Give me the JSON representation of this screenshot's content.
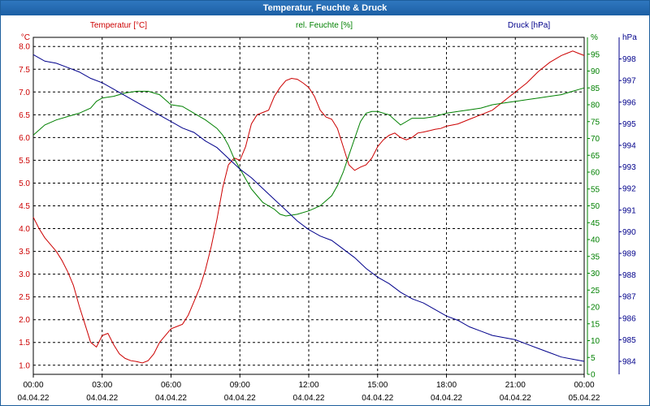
{
  "window": {
    "title": "Temperatur, Feuchte & Druck"
  },
  "colors": {
    "temperature": "#cc0000",
    "humidity": "#008000",
    "pressure": "#00008b",
    "grid": "#000000",
    "title_bar": "#2266aa",
    "tick_text": "#000000"
  },
  "chart_data": {
    "type": "line",
    "grid": true,
    "title": "Temperatur, Feuchte & Druck",
    "x_ticks": [
      {
        "time": "00:00",
        "date": "04.04.22"
      },
      {
        "time": "03:00",
        "date": "04.04.22"
      },
      {
        "time": "06:00",
        "date": "04.04.22"
      },
      {
        "time": "09:00",
        "date": "04.04.22"
      },
      {
        "time": "12:00",
        "date": "04.04.22"
      },
      {
        "time": "15:00",
        "date": "04.04.22"
      },
      {
        "time": "18:00",
        "date": "04.04.22"
      },
      {
        "time": "21:00",
        "date": "04.04.22"
      },
      {
        "time": "00:00",
        "date": "05.04.22"
      }
    ],
    "x_range_hours": [
      0,
      24
    ],
    "axes": [
      {
        "id": "temperature",
        "side": "left",
        "unit": "°C",
        "title": "Temperatur [°C]",
        "range": [
          0.8,
          8.2
        ],
        "ticks": [
          "1.0",
          "1.5",
          "2.0",
          "2.5",
          "3.0",
          "3.5",
          "4.0",
          "4.5",
          "5.0",
          "5.5",
          "6.0",
          "6.5",
          "7.0",
          "7.5",
          "8.0"
        ]
      },
      {
        "id": "humidity",
        "side": "right",
        "unit": "%",
        "title": "rel. Feuchte [%]",
        "range": [
          0,
          100
        ],
        "ticks": [
          "0",
          "5",
          "10",
          "15",
          "20",
          "25",
          "30",
          "35",
          "40",
          "45",
          "50",
          "55",
          "60",
          "65",
          "70",
          "75",
          "80",
          "85",
          "90",
          "95"
        ],
        "top_unit_label": "%"
      },
      {
        "id": "pressure",
        "side": "right",
        "unit": "hPa",
        "title": "Druck [hPa]",
        "range": [
          983.4,
          999.0
        ],
        "ticks": [
          "984",
          "985",
          "986",
          "987",
          "988",
          "989",
          "990",
          "991",
          "992",
          "993",
          "994",
          "995",
          "996",
          "997",
          "998"
        ],
        "top_unit_label": "hPa"
      }
    ],
    "series": [
      {
        "name": "Temperatur [°C]",
        "axis": "temperature",
        "x": [
          0,
          0.25,
          0.5,
          0.75,
          1,
          1.25,
          1.5,
          1.75,
          2,
          2.25,
          2.5,
          2.75,
          3,
          3.25,
          3.5,
          3.75,
          4,
          4.25,
          4.5,
          4.75,
          5,
          5.25,
          5.5,
          5.75,
          6,
          6.25,
          6.5,
          6.75,
          7,
          7.25,
          7.5,
          7.75,
          8,
          8.25,
          8.5,
          8.75,
          9,
          9.25,
          9.5,
          9.75,
          10,
          10.25,
          10.5,
          10.75,
          11,
          11.25,
          11.5,
          11.75,
          12,
          12.25,
          12.5,
          12.75,
          13,
          13.25,
          13.5,
          13.75,
          14,
          14.25,
          14.5,
          14.75,
          15,
          15.25,
          15.5,
          15.75,
          16,
          16.25,
          16.5,
          16.75,
          17,
          17.25,
          17.5,
          17.75,
          18,
          18.5,
          19,
          19.5,
          20,
          20.5,
          21,
          21.5,
          22,
          22.5,
          23,
          23.25,
          23.5,
          23.75,
          24
        ],
        "values": [
          4.25,
          4.0,
          3.8,
          3.65,
          3.5,
          3.3,
          3.05,
          2.75,
          2.3,
          1.9,
          1.5,
          1.4,
          1.65,
          1.7,
          1.45,
          1.25,
          1.15,
          1.1,
          1.08,
          1.05,
          1.1,
          1.25,
          1.5,
          1.65,
          1.8,
          1.85,
          1.9,
          2.1,
          2.4,
          2.7,
          3.1,
          3.6,
          4.2,
          4.9,
          5.4,
          5.55,
          5.5,
          5.8,
          6.3,
          6.5,
          6.55,
          6.6,
          6.9,
          7.1,
          7.25,
          7.3,
          7.28,
          7.2,
          7.1,
          6.9,
          6.6,
          6.45,
          6.4,
          6.2,
          5.8,
          5.4,
          5.28,
          5.35,
          5.4,
          5.55,
          5.8,
          5.95,
          6.05,
          6.1,
          6.0,
          5.95,
          6.0,
          6.1,
          6.12,
          6.15,
          6.18,
          6.2,
          6.25,
          6.3,
          6.4,
          6.5,
          6.6,
          6.8,
          7.0,
          7.2,
          7.45,
          7.65,
          7.8,
          7.85,
          7.9,
          7.85,
          7.8
        ]
      },
      {
        "name": "rel. Feuchte [%]",
        "axis": "humidity",
        "x": [
          0,
          0.25,
          0.5,
          1,
          1.5,
          2,
          2.5,
          2.75,
          3,
          3.5,
          4,
          4.5,
          5,
          5.5,
          6,
          6.5,
          7,
          7.5,
          8,
          8.25,
          8.5,
          8.75,
          9,
          9.25,
          9.5,
          9.75,
          10,
          10.25,
          10.5,
          10.75,
          11,
          11.5,
          12,
          12.5,
          13,
          13.25,
          13.5,
          13.75,
          14,
          14.25,
          14.5,
          14.75,
          15,
          15.5,
          16,
          16.5,
          17,
          17.5,
          18,
          18.5,
          19,
          19.5,
          20,
          20.5,
          21,
          21.5,
          22,
          22.5,
          23,
          23.25,
          23.5,
          23.75,
          24
        ],
        "values": [
          71,
          72.5,
          74,
          75.5,
          76.5,
          77.5,
          79,
          81,
          82,
          82.5,
          83.5,
          84,
          84,
          83,
          80,
          79.5,
          77.5,
          75.5,
          73,
          71,
          68,
          64,
          61,
          58,
          55,
          53,
          51,
          50,
          49,
          47.5,
          47,
          47.5,
          48.5,
          50,
          53,
          56,
          60,
          65,
          70,
          75,
          77.5,
          78,
          78,
          77,
          74,
          76,
          76,
          76.5,
          77.5,
          78,
          78.5,
          79,
          80,
          80.5,
          81,
          81.5,
          82,
          82.5,
          83,
          83.5,
          84,
          84.5,
          85
        ]
      },
      {
        "name": "Druck [hPa]",
        "axis": "pressure",
        "x": [
          0,
          0.5,
          1,
          1.5,
          2,
          2.5,
          3,
          3.5,
          4,
          4.5,
          5,
          5.5,
          6,
          6.5,
          7,
          7.5,
          8,
          8.5,
          9,
          9.5,
          10,
          10.5,
          11,
          11.5,
          12,
          12.5,
          13,
          13.5,
          14,
          14.5,
          15,
          15.5,
          16,
          16.5,
          17,
          17.5,
          18,
          18.5,
          19,
          19.5,
          20,
          20.5,
          21,
          21.5,
          22,
          22.5,
          23,
          23.5,
          24
        ],
        "values": [
          998.2,
          997.9,
          997.8,
          997.6,
          997.4,
          997.1,
          996.9,
          996.6,
          996.3,
          996.0,
          995.7,
          995.4,
          995.1,
          994.8,
          994.6,
          994.2,
          993.9,
          993.4,
          992.9,
          992.5,
          992.0,
          991.5,
          991.0,
          990.5,
          990.1,
          989.8,
          989.6,
          989.2,
          988.8,
          988.3,
          987.9,
          987.6,
          987.2,
          986.9,
          986.7,
          986.4,
          986.1,
          985.9,
          985.6,
          985.4,
          985.2,
          985.1,
          985.0,
          984.8,
          984.6,
          984.4,
          984.2,
          984.1,
          984.0
        ]
      }
    ]
  }
}
